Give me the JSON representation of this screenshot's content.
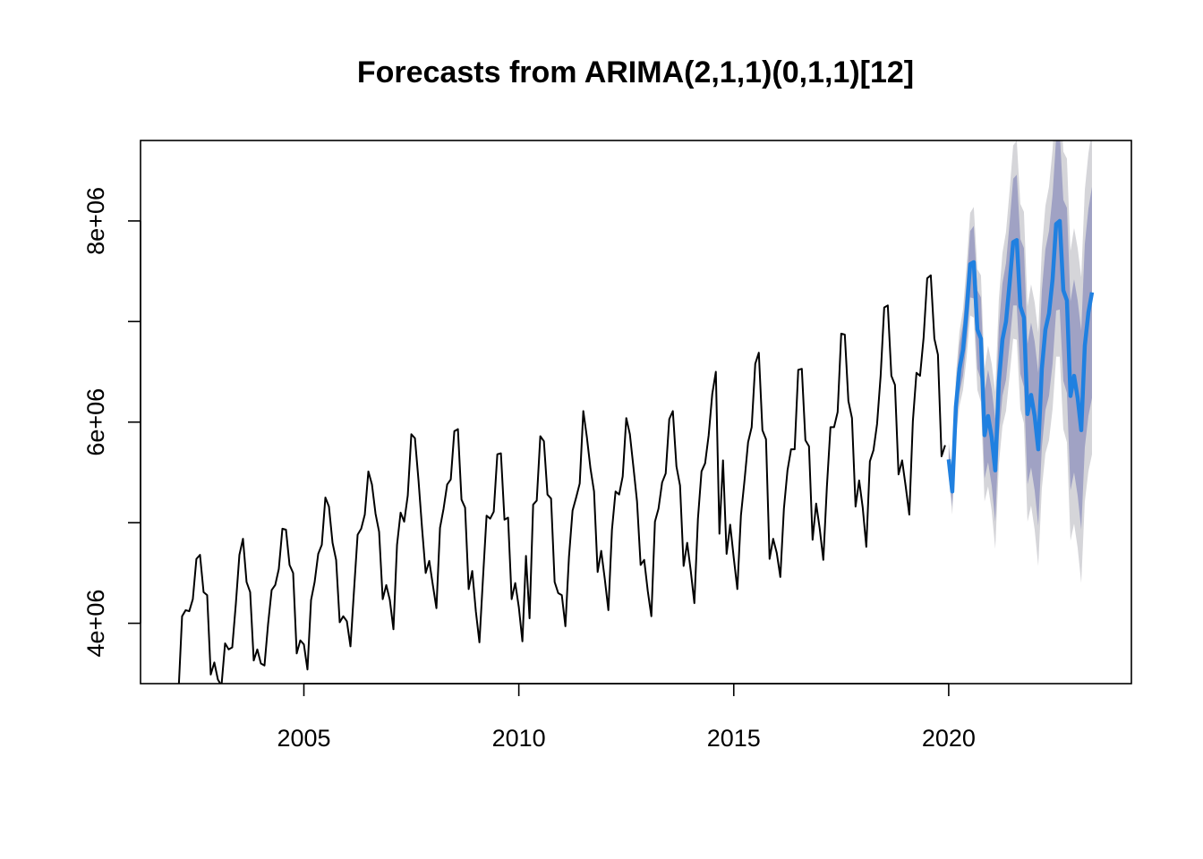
{
  "chart_data": {
    "type": "line",
    "title": "Forecasts from ARIMA(2,1,1)(0,1,1)[12]",
    "xlabel": "",
    "ylabel": "",
    "xlim": [
      2001.2,
      2024.25
    ],
    "ylim": [
      3400000,
      8800000
    ],
    "x_ticks": [
      {
        "value": 2005,
        "label": "2005"
      },
      {
        "value": 2010,
        "label": "2010"
      },
      {
        "value": 2015,
        "label": "2015"
      },
      {
        "value": 2020,
        "label": "2020"
      }
    ],
    "y_ticks": [
      {
        "value": 4000000,
        "label": "4e+06"
      },
      {
        "value": 5000000,
        "label": ""
      },
      {
        "value": 6000000,
        "label": "6e+06"
      },
      {
        "value": 7000000,
        "label": ""
      },
      {
        "value": 8000000,
        "label": "8e+06"
      }
    ],
    "colors": {
      "history": "#000000",
      "forecast": "#2080e0",
      "band80": "#a0a2c4",
      "band95": "#d5d5d9"
    },
    "history": {
      "start": 2002.0,
      "frequency": 12,
      "values": [
        3330000,
        3310000,
        4070000,
        4130000,
        4120000,
        4240000,
        4640000,
        4680000,
        4310000,
        4280000,
        3490000,
        3610000,
        3440000,
        3380000,
        3800000,
        3740000,
        3760000,
        4190000,
        4680000,
        4840000,
        4410000,
        4310000,
        3630000,
        3740000,
        3600000,
        3580000,
        3990000,
        4330000,
        4380000,
        4540000,
        4940000,
        4930000,
        4580000,
        4500000,
        3700000,
        3830000,
        3790000,
        3540000,
        4230000,
        4410000,
        4690000,
        4780000,
        5250000,
        5160000,
        4800000,
        4630000,
        4010000,
        4070000,
        4020000,
        3770000,
        4330000,
        4880000,
        4940000,
        5080000,
        5510000,
        5380000,
        5090000,
        4910000,
        4240000,
        4380000,
        4230000,
        3940000,
        4780000,
        5100000,
        5010000,
        5270000,
        5880000,
        5840000,
        5420000,
        4940000,
        4500000,
        4620000,
        4380000,
        4150000,
        4950000,
        5140000,
        5380000,
        5430000,
        5910000,
        5930000,
        5230000,
        5150000,
        4340000,
        4520000,
        4120000,
        3810000,
        4450000,
        5070000,
        5040000,
        5110000,
        5680000,
        5690000,
        5030000,
        5050000,
        4240000,
        4400000,
        4160000,
        3820000,
        4670000,
        4050000,
        5180000,
        5220000,
        5860000,
        5810000,
        5280000,
        5240000,
        4410000,
        4300000,
        4280000,
        3970000,
        4660000,
        5120000,
        5250000,
        5390000,
        6110000,
        5850000,
        5540000,
        5310000,
        4510000,
        4720000,
        4440000,
        4130000,
        4930000,
        5310000,
        5280000,
        5460000,
        6040000,
        5880000,
        5550000,
        5210000,
        4580000,
        4630000,
        4320000,
        4070000,
        5010000,
        5140000,
        5400000,
        5490000,
        6030000,
        6110000,
        5560000,
        5370000,
        4570000,
        4800000,
        4520000,
        4200000,
        5040000,
        5510000,
        5590000,
        5870000,
        6280000,
        6500000,
        4890000,
        5620000,
        4690000,
        4980000,
        4650000,
        4340000,
        5070000,
        5420000,
        5800000,
        5950000,
        6580000,
        6690000,
        5920000,
        5830000,
        4640000,
        4840000,
        4700000,
        4460000,
        5140000,
        5520000,
        5730000,
        5730000,
        6520000,
        6530000,
        5820000,
        5760000,
        4830000,
        5190000,
        4940000,
        4630000,
        5360000,
        5950000,
        5950000,
        6100000,
        6880000,
        6870000,
        6210000,
        6040000,
        5160000,
        5420000,
        5150000,
        4760000,
        5610000,
        5720000,
        5980000,
        6460000,
        7140000,
        7160000,
        6460000,
        6370000,
        5480000,
        5620000,
        5360000,
        5080000,
        6010000,
        6490000,
        6460000,
        6840000,
        7430000,
        7460000,
        6830000,
        6670000,
        5660000,
        5770000
      ]
    },
    "forecast": {
      "start": 2020.0,
      "frequency": 12,
      "mean": [
        5630000,
        5310000,
        6150000,
        6530000,
        6720000,
        7100000,
        7570000,
        7590000,
        6920000,
        6830000,
        5870000,
        6060000,
        5850000,
        5520000,
        6400000,
        6820000,
        7000000,
        7380000,
        7790000,
        7810000,
        7150000,
        7040000,
        6080000,
        6270000,
        6060000,
        5730000,
        6530000,
        6920000,
        7080000,
        7420000,
        7970000,
        8000000,
        7310000,
        7210000,
        6260000,
        6460000,
        6240000,
        5920000,
        6760000,
        7090000,
        7290000
      ],
      "lo80": [
        5520000,
        5160000,
        5950000,
        6290000,
        6460000,
        6800000,
        7240000,
        7230000,
        6530000,
        6420000,
        5440000,
        5600000,
        5370000,
        5010000,
        5860000,
        6260000,
        6420000,
        6780000,
        7160000,
        7160000,
        6480000,
        6350000,
        5380000,
        5550000,
        5320000,
        4970000,
        5750000,
        6120000,
        6260000,
        6580000,
        7110000,
        7120000,
        6410000,
        6290000,
        5320000,
        5500000,
        5270000,
        4930000,
        5750000,
        6060000,
        6240000
      ],
      "hi80": [
        5740000,
        5460000,
        6350000,
        6770000,
        6980000,
        7400000,
        7900000,
        7950000,
        7310000,
        7240000,
        6300000,
        6520000,
        6330000,
        6030000,
        6940000,
        7380000,
        7580000,
        7980000,
        8420000,
        8460000,
        7820000,
        7730000,
        6780000,
        6990000,
        6800000,
        6490000,
        7310000,
        7720000,
        7900000,
        8260000,
        8830000,
        8880000,
        8210000,
        8130000,
        7200000,
        7420000,
        7210000,
        6910000,
        7770000,
        8120000,
        8340000
      ],
      "lo95": [
        5460000,
        5080000,
        5840000,
        6160000,
        6320000,
        6640000,
        7060000,
        7040000,
        6320000,
        6200000,
        5210000,
        5360000,
        5120000,
        4740000,
        5580000,
        5960000,
        6110000,
        6460000,
        6830000,
        6820000,
        6130000,
        5990000,
        5010000,
        5170000,
        4930000,
        4570000,
        5340000,
        5690000,
        5820000,
        6130000,
        6650000,
        6650000,
        5930000,
        5800000,
        4820000,
        4990000,
        4750000,
        4400000,
        5210000,
        5510000,
        5680000
      ],
      "hi95": [
        5800000,
        5540000,
        6460000,
        6900000,
        7120000,
        7560000,
        8080000,
        8140000,
        7520000,
        7460000,
        6530000,
        6760000,
        6580000,
        6300000,
        7220000,
        7680000,
        7890000,
        8300000,
        8750000,
        8800000,
        8170000,
        8090000,
        7150000,
        7370000,
        7190000,
        6890000,
        7720000,
        8150000,
        8340000,
        8710000,
        9290000,
        9350000,
        8690000,
        8620000,
        7700000,
        7930000,
        7730000,
        7440000,
        8310000,
        8670000,
        8900000
      ]
    }
  }
}
